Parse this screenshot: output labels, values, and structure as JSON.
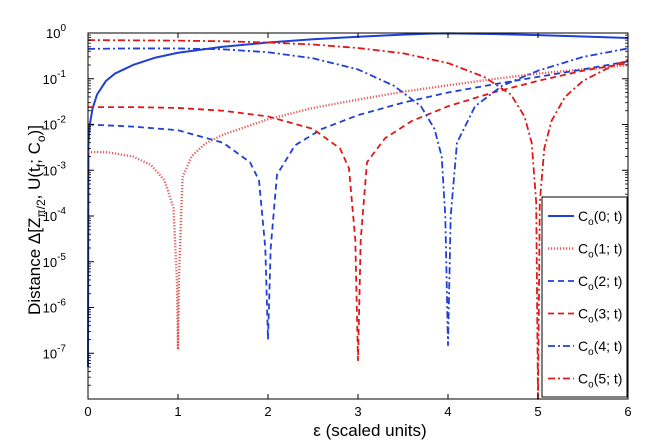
{
  "chart_data": {
    "type": "line",
    "title": "",
    "xlabel": "ε (scaled units)",
    "ylabel": {
      "prefix": "Distance Δ[Z",
      "sub1": "π/2",
      "mid": ", U(t",
      "sub2": "f",
      "mid2": "; C",
      "sub3": "o",
      "suffix": ")]"
    },
    "xlim": [
      0,
      6
    ],
    "ylim": [
      1e-08,
      1
    ],
    "yscale": "log",
    "grid": false,
    "legend_position": "bottom-right",
    "x_ticks": [
      "0",
      "1",
      "2",
      "3",
      "4",
      "5",
      "6"
    ],
    "y_ticks": [
      {
        "base": "10",
        "exp": "0",
        "value": 1
      },
      {
        "base": "10",
        "exp": "-1",
        "value": 0.1
      },
      {
        "base": "10",
        "exp": "-2",
        "value": 0.01
      },
      {
        "base": "10",
        "exp": "-3",
        "value": 0.001
      },
      {
        "base": "10",
        "exp": "-4",
        "value": 0.0001
      },
      {
        "base": "10",
        "exp": "-5",
        "value": 1e-05
      },
      {
        "base": "10",
        "exp": "-6",
        "value": 1e-06
      },
      {
        "base": "10",
        "exp": "-7",
        "value": 1e-07
      }
    ],
    "series": [
      {
        "name": {
          "pre": "C",
          "sub": "o",
          "post": "(0; t)"
        },
        "color": "#1f3fd6",
        "dash": "solid",
        "x": [
          0,
          0.005,
          0.02,
          0.05,
          0.1,
          0.2,
          0.3,
          0.5,
          0.75,
          1.0,
          1.5,
          2.0,
          2.5,
          3.0,
          3.5,
          3.8,
          4.0,
          4.2,
          4.5,
          5.0,
          5.5,
          6.0
        ],
        "y": [
          5e-08,
          0.004,
          0.01,
          0.022,
          0.045,
          0.09,
          0.13,
          0.2,
          0.29,
          0.37,
          0.5,
          0.62,
          0.73,
          0.83,
          0.92,
          0.97,
          0.98,
          0.97,
          0.95,
          0.9,
          0.84,
          0.78
        ]
      },
      {
        "name": {
          "pre": "C",
          "sub": "o",
          "post": "(1; t)"
        },
        "color": "#e35a5a",
        "dash": "dotted",
        "x": [
          0,
          0.2,
          0.5,
          0.7,
          0.85,
          0.95,
          0.99,
          1.0,
          1.01,
          1.05,
          1.15,
          1.3,
          1.5,
          2.0,
          2.5,
          3.0,
          3.5,
          4.0,
          4.5,
          5.0,
          5.5,
          6.0
        ],
        "y": [
          0.0025,
          0.0025,
          0.002,
          0.0013,
          0.0006,
          0.00015,
          3e-06,
          1.2e-07,
          4e-06,
          0.0007,
          0.002,
          0.0038,
          0.006,
          0.013,
          0.023,
          0.035,
          0.052,
          0.072,
          0.098,
          0.13,
          0.16,
          0.2
        ]
      },
      {
        "name": {
          "pre": "C",
          "sub": "o",
          "post": "(2; t)"
        },
        "color": "#1f3fd6",
        "dash": "dashed",
        "x": [
          0,
          0.5,
          1.0,
          1.5,
          1.8,
          1.9,
          1.97,
          2.0,
          2.03,
          2.1,
          2.3,
          2.6,
          3.0,
          3.5,
          4.0,
          4.5,
          5.0,
          5.5,
          6.0
        ],
        "y": [
          0.01,
          0.009,
          0.0075,
          0.004,
          0.0015,
          0.0006,
          2e-05,
          2e-07,
          2e-05,
          0.0008,
          0.0035,
          0.008,
          0.016,
          0.03,
          0.05,
          0.075,
          0.11,
          0.16,
          0.24
        ]
      },
      {
        "name": {
          "pre": "C",
          "sub": "o",
          "post": "(3; t)"
        },
        "color": "#e01818",
        "dash": "dashed",
        "x": [
          0,
          0.5,
          1.0,
          1.5,
          2.0,
          2.5,
          2.8,
          2.9,
          2.97,
          3.0,
          3.03,
          3.1,
          3.3,
          3.6,
          4.0,
          4.5,
          5.0,
          5.5,
          6.0
        ],
        "y": [
          0.024,
          0.024,
          0.023,
          0.02,
          0.015,
          0.008,
          0.003,
          0.0011,
          3e-05,
          7e-08,
          3e-05,
          0.0015,
          0.005,
          0.012,
          0.025,
          0.05,
          0.09,
          0.15,
          0.22
        ]
      },
      {
        "name": {
          "pre": "C",
          "sub": "o",
          "post": "(4; t)"
        },
        "color": "#1f3fd6",
        "dash": "dashdot",
        "x": [
          0,
          0.5,
          1.0,
          1.5,
          2.0,
          2.5,
          3.0,
          3.4,
          3.7,
          3.85,
          3.93,
          3.97,
          4.0,
          4.03,
          4.1,
          4.3,
          4.6,
          5.0,
          5.5,
          6.0
        ],
        "y": [
          0.45,
          0.46,
          0.46,
          0.44,
          0.38,
          0.28,
          0.16,
          0.07,
          0.025,
          0.008,
          0.002,
          0.0001,
          1.5e-07,
          0.0001,
          0.004,
          0.025,
          0.07,
          0.15,
          0.3,
          0.46
        ]
      },
      {
        "name": {
          "pre": "C",
          "sub": "o",
          "post": "(5; t)"
        },
        "color": "#e01818",
        "dash": "dashdot",
        "x": [
          0,
          0.5,
          1.0,
          1.5,
          2.0,
          2.5,
          3.0,
          3.5,
          4.0,
          4.4,
          4.7,
          4.85,
          4.93,
          4.98,
          5.0,
          5.02,
          5.07,
          5.15,
          5.3,
          5.5,
          5.8,
          6.0
        ],
        "y": [
          0.7,
          0.69,
          0.68,
          0.66,
          0.62,
          0.56,
          0.47,
          0.36,
          0.22,
          0.11,
          0.045,
          0.015,
          0.004,
          0.0002,
          1e-08,
          0.0002,
          0.003,
          0.012,
          0.04,
          0.09,
          0.18,
          0.26
        ]
      }
    ]
  }
}
